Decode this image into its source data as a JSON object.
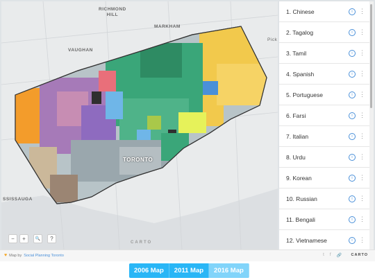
{
  "map": {
    "labels": {
      "richmond_hill": "RICHMOND\nHILL",
      "markham": "MARKHAM",
      "vaughan": "VAUGHAN",
      "toronto": "TORONTO",
      "mississauga": "SSISSAUGA",
      "pickering": "Pick"
    },
    "controls": {
      "zoom_out": "−",
      "zoom_in": "+",
      "search": "🔍",
      "help": "?"
    },
    "watermark": "CARTO"
  },
  "legend": {
    "items": [
      {
        "label": "1. Chinese"
      },
      {
        "label": "2. Tagalog"
      },
      {
        "label": "3. Tamil"
      },
      {
        "label": "4. Spanish"
      },
      {
        "label": "5. Portuguese"
      },
      {
        "label": "6. Farsi"
      },
      {
        "label": "7. Italian"
      },
      {
        "label": "8. Urdu"
      },
      {
        "label": "9. Korean"
      },
      {
        "label": "10. Russian"
      },
      {
        "label": "11. Bengali"
      },
      {
        "label": "12. Vietnamese"
      }
    ],
    "info_glyph": "i",
    "more_glyph": "⋮"
  },
  "footer": {
    "attribution_prefix": "Map by",
    "attribution_link": "Social Planning Toronto",
    "social": [
      "t",
      "f",
      "🔗"
    ],
    "brand": "CARTO"
  },
  "tabs": [
    {
      "label": "2006 Map"
    },
    {
      "label": "2011 Map"
    },
    {
      "label": "2016 Map"
    }
  ],
  "colors": {
    "tab": "#29b6f6",
    "tab_active": "#81d4fa",
    "water": "#e8eaec"
  }
}
